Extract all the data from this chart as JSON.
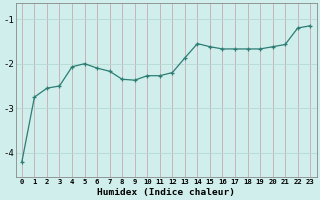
{
  "x": [
    0,
    1,
    2,
    3,
    4,
    5,
    6,
    7,
    8,
    9,
    10,
    11,
    12,
    13,
    14,
    15,
    16,
    17,
    18,
    19,
    20,
    21,
    22,
    23
  ],
  "y": [
    -4.2,
    -2.75,
    -2.55,
    -2.5,
    -2.07,
    -2.0,
    -2.1,
    -2.17,
    -2.35,
    -2.37,
    -2.27,
    -2.27,
    -2.2,
    -1.87,
    -1.55,
    -1.62,
    -1.67,
    -1.67,
    -1.67,
    -1.67,
    -1.62,
    -1.57,
    -1.2,
    -1.15
  ],
  "xlabel": "Humidex (Indice chaleur)",
  "bg_color": "#d0eeeb",
  "line_color": "#2d7d74",
  "marker_color": "#2d7d74",
  "grid_color_v": "#c8aab0",
  "grid_color_h": "#b8d8d4",
  "axis_color": "#888888",
  "yticks": [
    -4,
    -3,
    -2,
    -1
  ],
  "xlim": [
    -0.5,
    23.5
  ],
  "ylim": [
    -4.55,
    -0.65
  ]
}
